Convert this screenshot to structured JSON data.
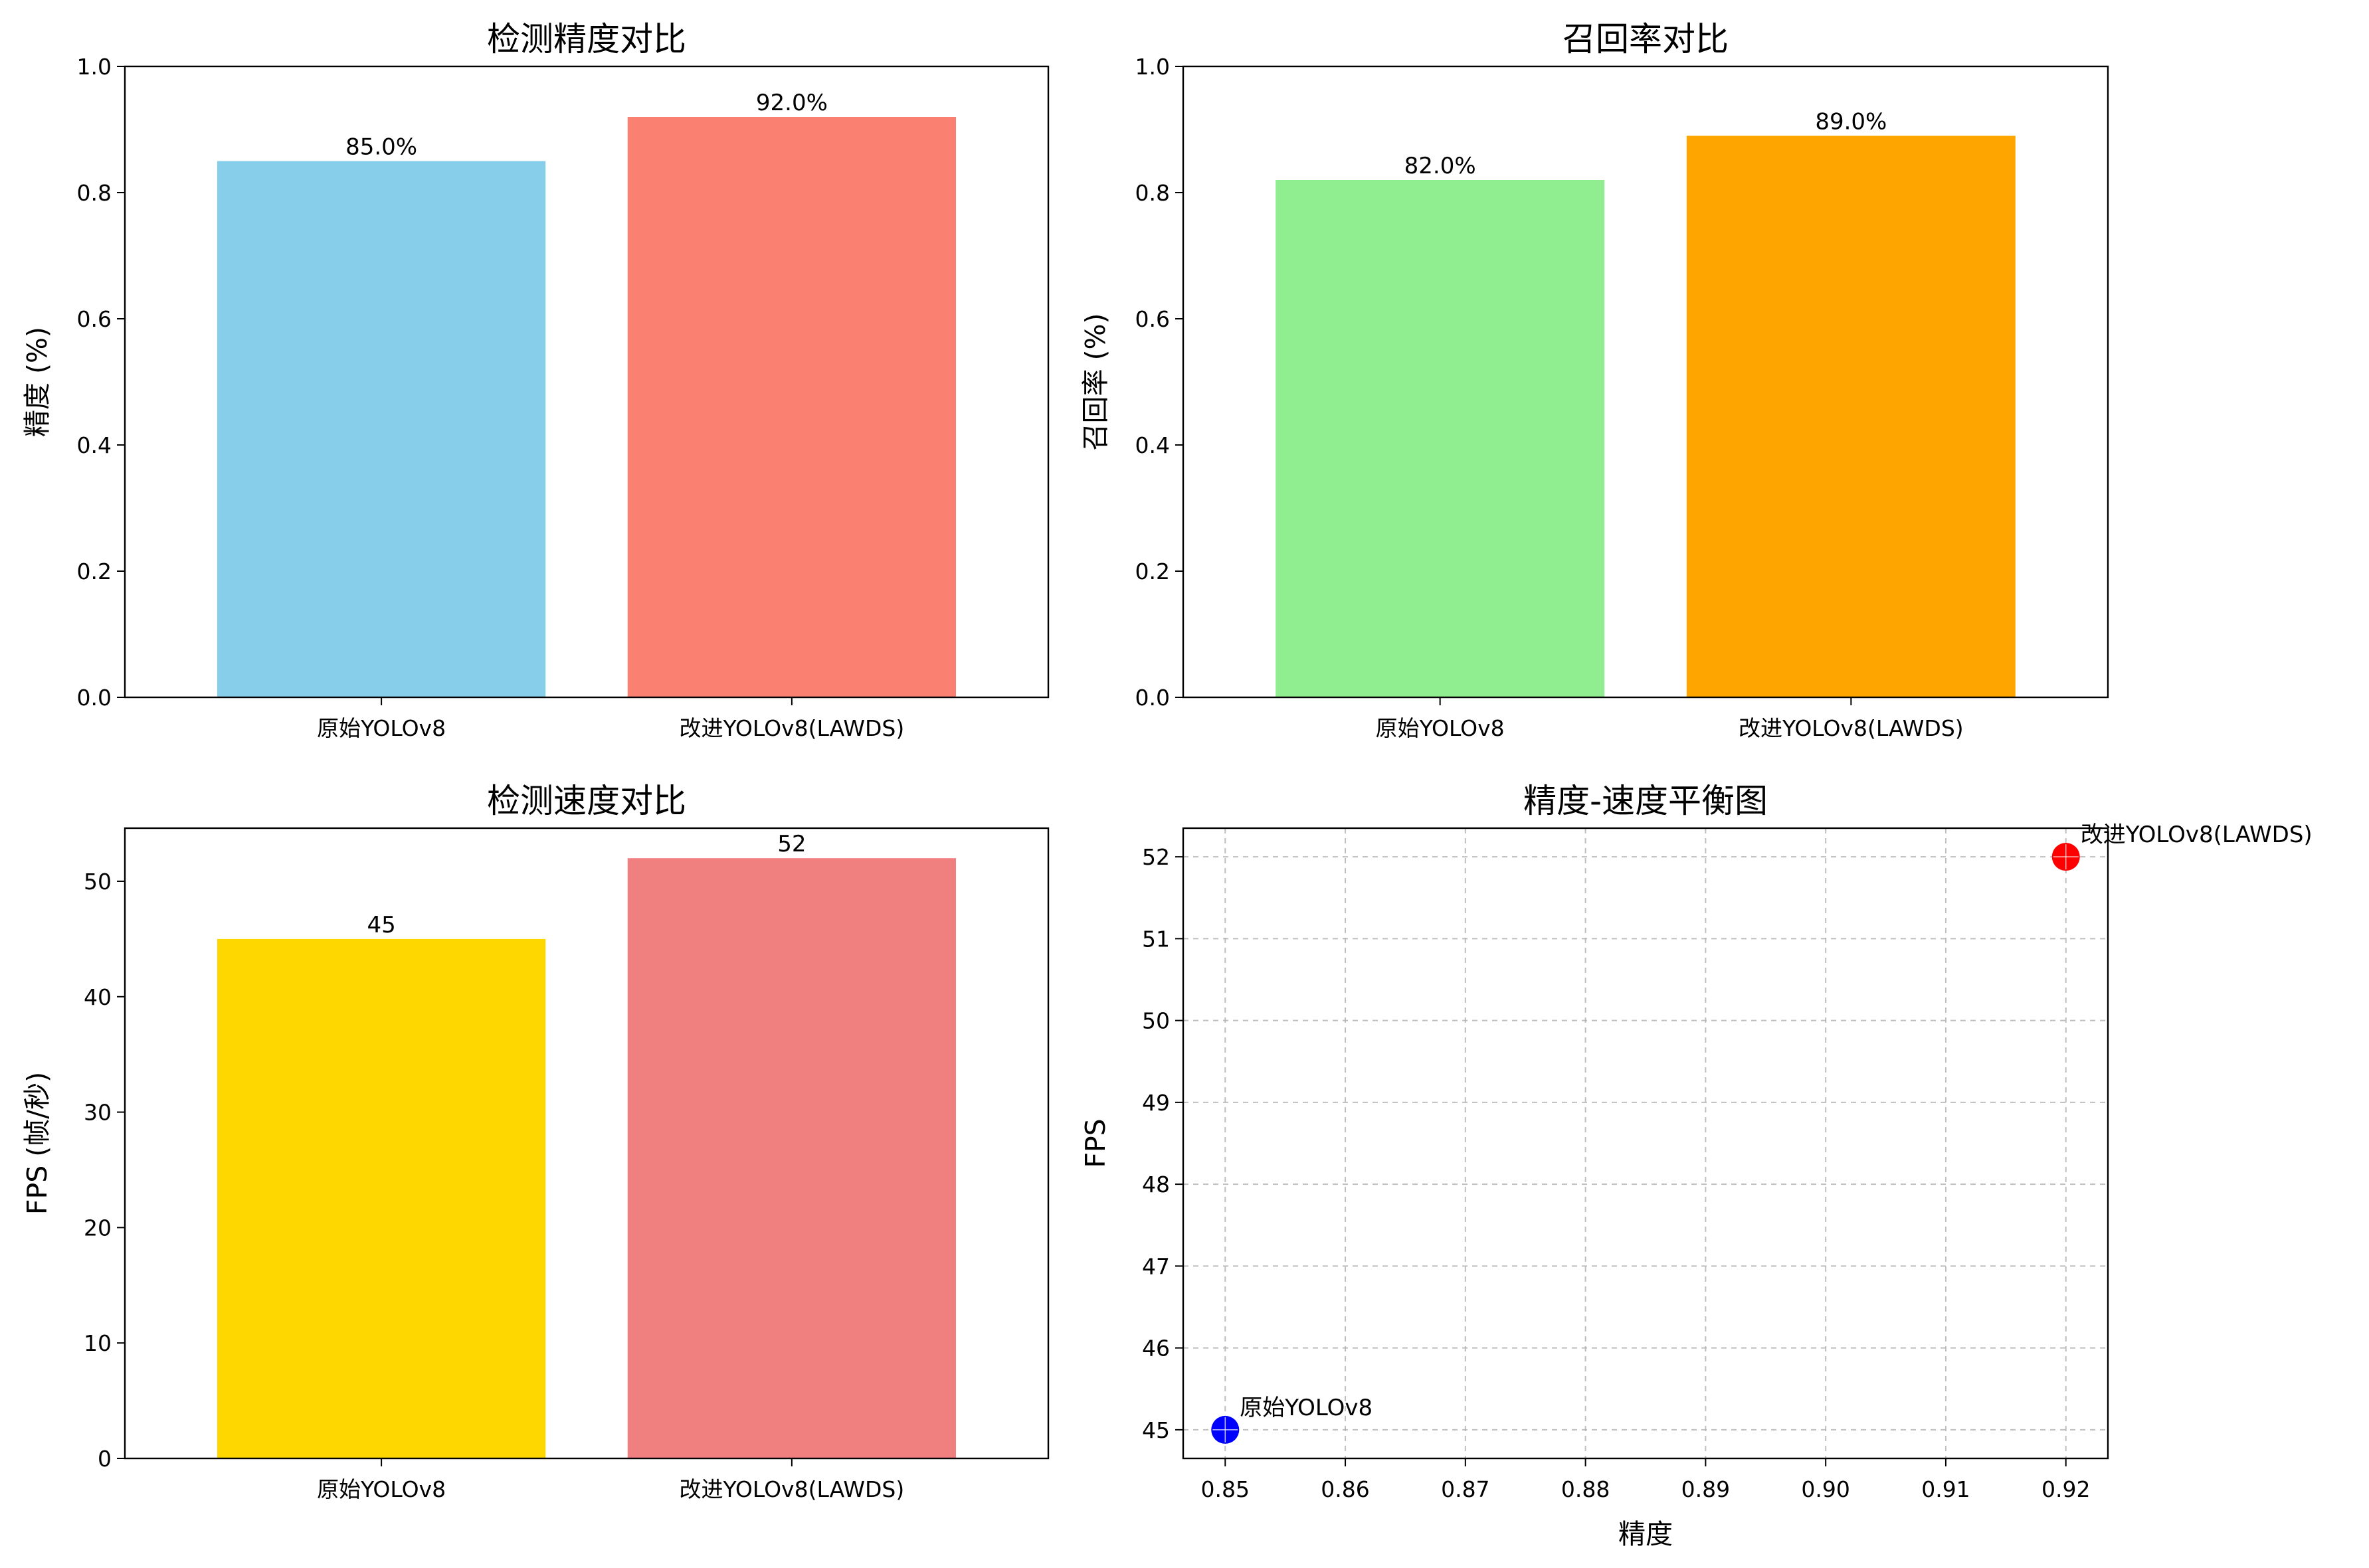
{
  "chart_data": [
    {
      "id": "accuracy",
      "type": "bar",
      "title": "检测精度对比",
      "xlabel": "",
      "ylabel": "精度 (%)",
      "categories": [
        "原始YOLOv8",
        "改进YOLOv8(LAWDS)"
      ],
      "values": [
        0.85,
        0.92
      ],
      "data_labels": [
        "85.0%",
        "92.0%"
      ],
      "colors": [
        "#87ceeb",
        "#fa8072"
      ],
      "ylim": [
        0,
        1.0
      ],
      "yticks": [
        0.0,
        0.2,
        0.4,
        0.6,
        0.8,
        1.0
      ],
      "ytick_labels": [
        "0.0",
        "0.2",
        "0.4",
        "0.6",
        "0.8",
        "1.0"
      ],
      "grid": false
    },
    {
      "id": "recall",
      "type": "bar",
      "title": "召回率对比",
      "xlabel": "",
      "ylabel": "召回率 (%)",
      "categories": [
        "原始YOLOv8",
        "改进YOLOv8(LAWDS)"
      ],
      "values": [
        0.82,
        0.89
      ],
      "data_labels": [
        "82.0%",
        "89.0%"
      ],
      "colors": [
        "#90ee90",
        "#ffa500"
      ],
      "ylim": [
        0,
        1.0
      ],
      "yticks": [
        0.0,
        0.2,
        0.4,
        0.6,
        0.8,
        1.0
      ],
      "ytick_labels": [
        "0.0",
        "0.2",
        "0.4",
        "0.6",
        "0.8",
        "1.0"
      ],
      "grid": false
    },
    {
      "id": "speed",
      "type": "bar",
      "title": "检测速度对比",
      "xlabel": "",
      "ylabel": "FPS (帧/秒)",
      "categories": [
        "原始YOLOv8",
        "改进YOLOv8(LAWDS)"
      ],
      "values": [
        45,
        52
      ],
      "data_labels": [
        "45",
        "52"
      ],
      "colors": [
        "#ffd700",
        "#f08080"
      ],
      "ylim": [
        0,
        54.6
      ],
      "yticks": [
        0,
        10,
        20,
        30,
        40,
        50
      ],
      "ytick_labels": [
        "0",
        "10",
        "20",
        "30",
        "40",
        "50"
      ],
      "grid": false
    },
    {
      "id": "tradeoff",
      "type": "scatter",
      "title": "精度-速度平衡图",
      "xlabel": "精度",
      "ylabel": "FPS",
      "points": [
        {
          "name": "原始YOLOv8",
          "x": 0.85,
          "y": 45,
          "color": "#0000ff"
        },
        {
          "name": "改进YOLOv8(LAWDS)",
          "x": 0.92,
          "y": 52,
          "color": "#ff0000"
        }
      ],
      "xlim": [
        0.8465,
        0.9235
      ],
      "ylim": [
        44.65,
        52.35
      ],
      "xticks": [
        0.85,
        0.86,
        0.87,
        0.88,
        0.89,
        0.9,
        0.91,
        0.92
      ],
      "xtick_labels": [
        "0.85",
        "0.86",
        "0.87",
        "0.88",
        "0.89",
        "0.90",
        "0.91",
        "0.92"
      ],
      "yticks": [
        45,
        46,
        47,
        48,
        49,
        50,
        51,
        52
      ],
      "ytick_labels": [
        "45",
        "46",
        "47",
        "48",
        "49",
        "50",
        "51",
        "52"
      ],
      "grid": true
    }
  ]
}
